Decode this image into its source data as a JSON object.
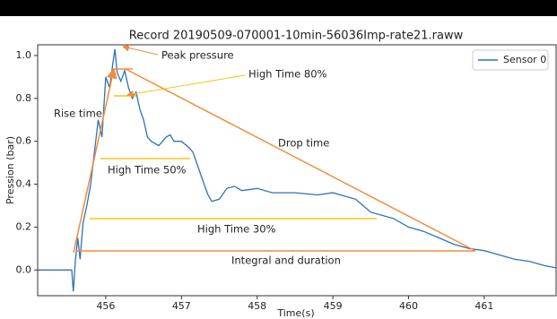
{
  "chart_data": {
    "type": "line",
    "title": "Record 20190509-070001-10min-56036Imp-rate21.raww",
    "x_label": "Time(s)",
    "y_label": "Pression (bar)",
    "x": [
      455.1,
      455.3,
      455.55,
      455.57,
      455.6,
      455.63,
      455.66,
      455.7,
      455.75,
      455.8,
      455.85,
      455.9,
      455.95,
      456.0,
      456.05,
      456.1,
      456.12,
      456.15,
      456.2,
      456.25,
      456.3,
      456.35,
      456.4,
      456.45,
      456.5,
      456.55,
      456.6,
      456.7,
      456.8,
      456.85,
      456.9,
      457.0,
      457.1,
      457.15,
      457.2,
      457.25,
      457.3,
      457.35,
      457.4,
      457.5,
      457.6,
      457.7,
      457.8,
      458.0,
      458.2,
      458.5,
      458.8,
      459.0,
      459.2,
      459.3,
      459.4,
      459.5,
      459.7,
      459.8,
      460.0,
      460.2,
      460.4,
      460.6,
      460.8,
      461.0,
      461.2,
      461.4,
      461.6,
      461.8,
      461.95
    ],
    "series": [
      {
        "name": "Sensor 0",
        "color": "#2e73b4",
        "values": [
          0.0,
          0.0,
          0.0,
          -0.1,
          0.05,
          0.15,
          0.05,
          0.22,
          0.3,
          0.4,
          0.55,
          0.7,
          0.62,
          0.9,
          0.85,
          0.98,
          1.03,
          0.92,
          0.88,
          0.93,
          0.85,
          0.8,
          0.83,
          0.75,
          0.7,
          0.62,
          0.6,
          0.58,
          0.62,
          0.63,
          0.6,
          0.6,
          0.57,
          0.55,
          0.5,
          0.45,
          0.4,
          0.35,
          0.32,
          0.33,
          0.38,
          0.39,
          0.37,
          0.38,
          0.36,
          0.36,
          0.35,
          0.36,
          0.34,
          0.33,
          0.3,
          0.27,
          0.25,
          0.24,
          0.2,
          0.18,
          0.15,
          0.12,
          0.1,
          0.09,
          0.07,
          0.05,
          0.04,
          0.02,
          0.01
        ]
      }
    ],
    "xlim": [
      455.1,
      461.95
    ],
    "ylim": [
      -0.12,
      1.05
    ],
    "xticks": [
      456,
      457,
      458,
      459,
      460,
      461
    ],
    "yticks": [
      {
        "value": 0,
        "label": "0.0"
      },
      0.2,
      0.4,
      0.6,
      0.8,
      {
        "value": 1,
        "label": "1.0"
      }
    ],
    "legend": "upper right",
    "annotations": [
      "Peak pressure",
      "High Time 80%",
      "Rise time",
      "Drop time",
      "High Time 50%",
      "High Time 30%",
      "Integral and duration"
    ]
  }
}
